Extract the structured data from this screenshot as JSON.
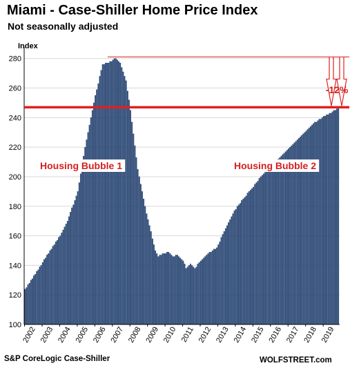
{
  "title": "Miami - Case-Shiller Home Price Index",
  "subtitle": "Not seasonally adjusted",
  "source": "S&P CoreLogic Case-Shiller",
  "site": "WOLFSTREET.com",
  "colors": {
    "bar": "#2b4a7a",
    "bar_stroke": "#1a3258",
    "annotation": "#e02020",
    "grid": "#d8d8d8"
  },
  "chart_data": {
    "type": "bar",
    "ylabel": "Index",
    "ylim": [
      100,
      285
    ],
    "yticks": [
      100,
      120,
      140,
      160,
      180,
      200,
      220,
      240,
      260,
      280
    ],
    "xticks": [
      "2002",
      "2003",
      "2004",
      "2005",
      "2006",
      "2007",
      "2008",
      "2009",
      "2010",
      "2011",
      "2012",
      "2013",
      "2014",
      "2015",
      "2016",
      "2017",
      "2018",
      "2019"
    ],
    "grid": "horizontal",
    "start": "2002-01",
    "frequency": "monthly",
    "anchors": [
      [
        "2002-01",
        124
      ],
      [
        "2002-06",
        131
      ],
      [
        "2003-01",
        142
      ],
      [
        "2003-06",
        150
      ],
      [
        "2004-01",
        160
      ],
      [
        "2004-06",
        170
      ],
      [
        "2005-01",
        190
      ],
      [
        "2005-06",
        220
      ],
      [
        "2006-01",
        255
      ],
      [
        "2006-06",
        276
      ],
      [
        "2006-10",
        277
      ],
      [
        "2007-01",
        279
      ],
      [
        "2007-03",
        280
      ],
      [
        "2007-06",
        277
      ],
      [
        "2007-10",
        265
      ],
      [
        "2008-01",
        245
      ],
      [
        "2008-06",
        205
      ],
      [
        "2008-12",
        175
      ],
      [
        "2009-06",
        150
      ],
      [
        "2009-08",
        146
      ],
      [
        "2009-12",
        148
      ],
      [
        "2010-03",
        149
      ],
      [
        "2010-06",
        146
      ],
      [
        "2010-09",
        147
      ],
      [
        "2011-01",
        143
      ],
      [
        "2011-03",
        138
      ],
      [
        "2011-06",
        141
      ],
      [
        "2011-09",
        138
      ],
      [
        "2011-12",
        142
      ],
      [
        "2012-06",
        148
      ],
      [
        "2012-12",
        152
      ],
      [
        "2013-06",
        165
      ],
      [
        "2013-12",
        177
      ],
      [
        "2014-06",
        185
      ],
      [
        "2014-12",
        192
      ],
      [
        "2015-06",
        200
      ],
      [
        "2015-12",
        206
      ],
      [
        "2016-06",
        212
      ],
      [
        "2016-12",
        218
      ],
      [
        "2017-06",
        224
      ],
      [
        "2017-12",
        230
      ],
      [
        "2018-06",
        236
      ],
      [
        "2018-12",
        240
      ],
      [
        "2019-06",
        243
      ],
      [
        "2019-10",
        246
      ],
      [
        "2019-11",
        247
      ]
    ],
    "reference_line": {
      "value": 247
    },
    "peak_line": {
      "value": 281
    },
    "annotations": [
      {
        "label": "Housing Bubble 1"
      },
      {
        "label": "Housing Bubble 2"
      },
      {
        "label": "-12%"
      }
    ]
  }
}
